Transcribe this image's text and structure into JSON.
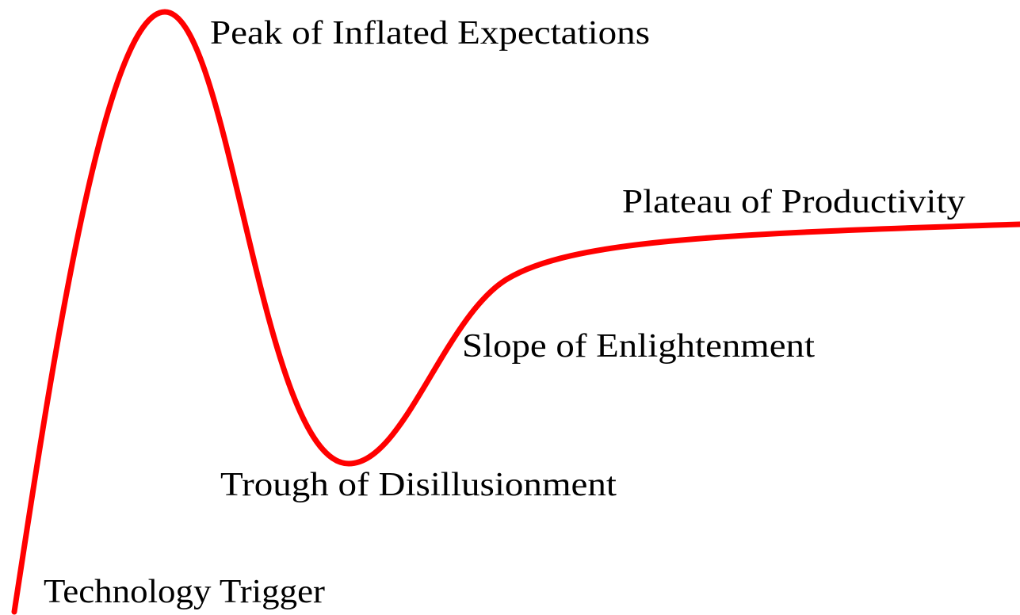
{
  "phases": [
    {
      "label": "Technology Trigger"
    },
    {
      "label": "Peak of Inflated Expectations"
    },
    {
      "label": "Trough of Disillusionment"
    },
    {
      "label": "Slope of Enlightenment"
    },
    {
      "label": "Plateau of Productivity"
    }
  ]
}
